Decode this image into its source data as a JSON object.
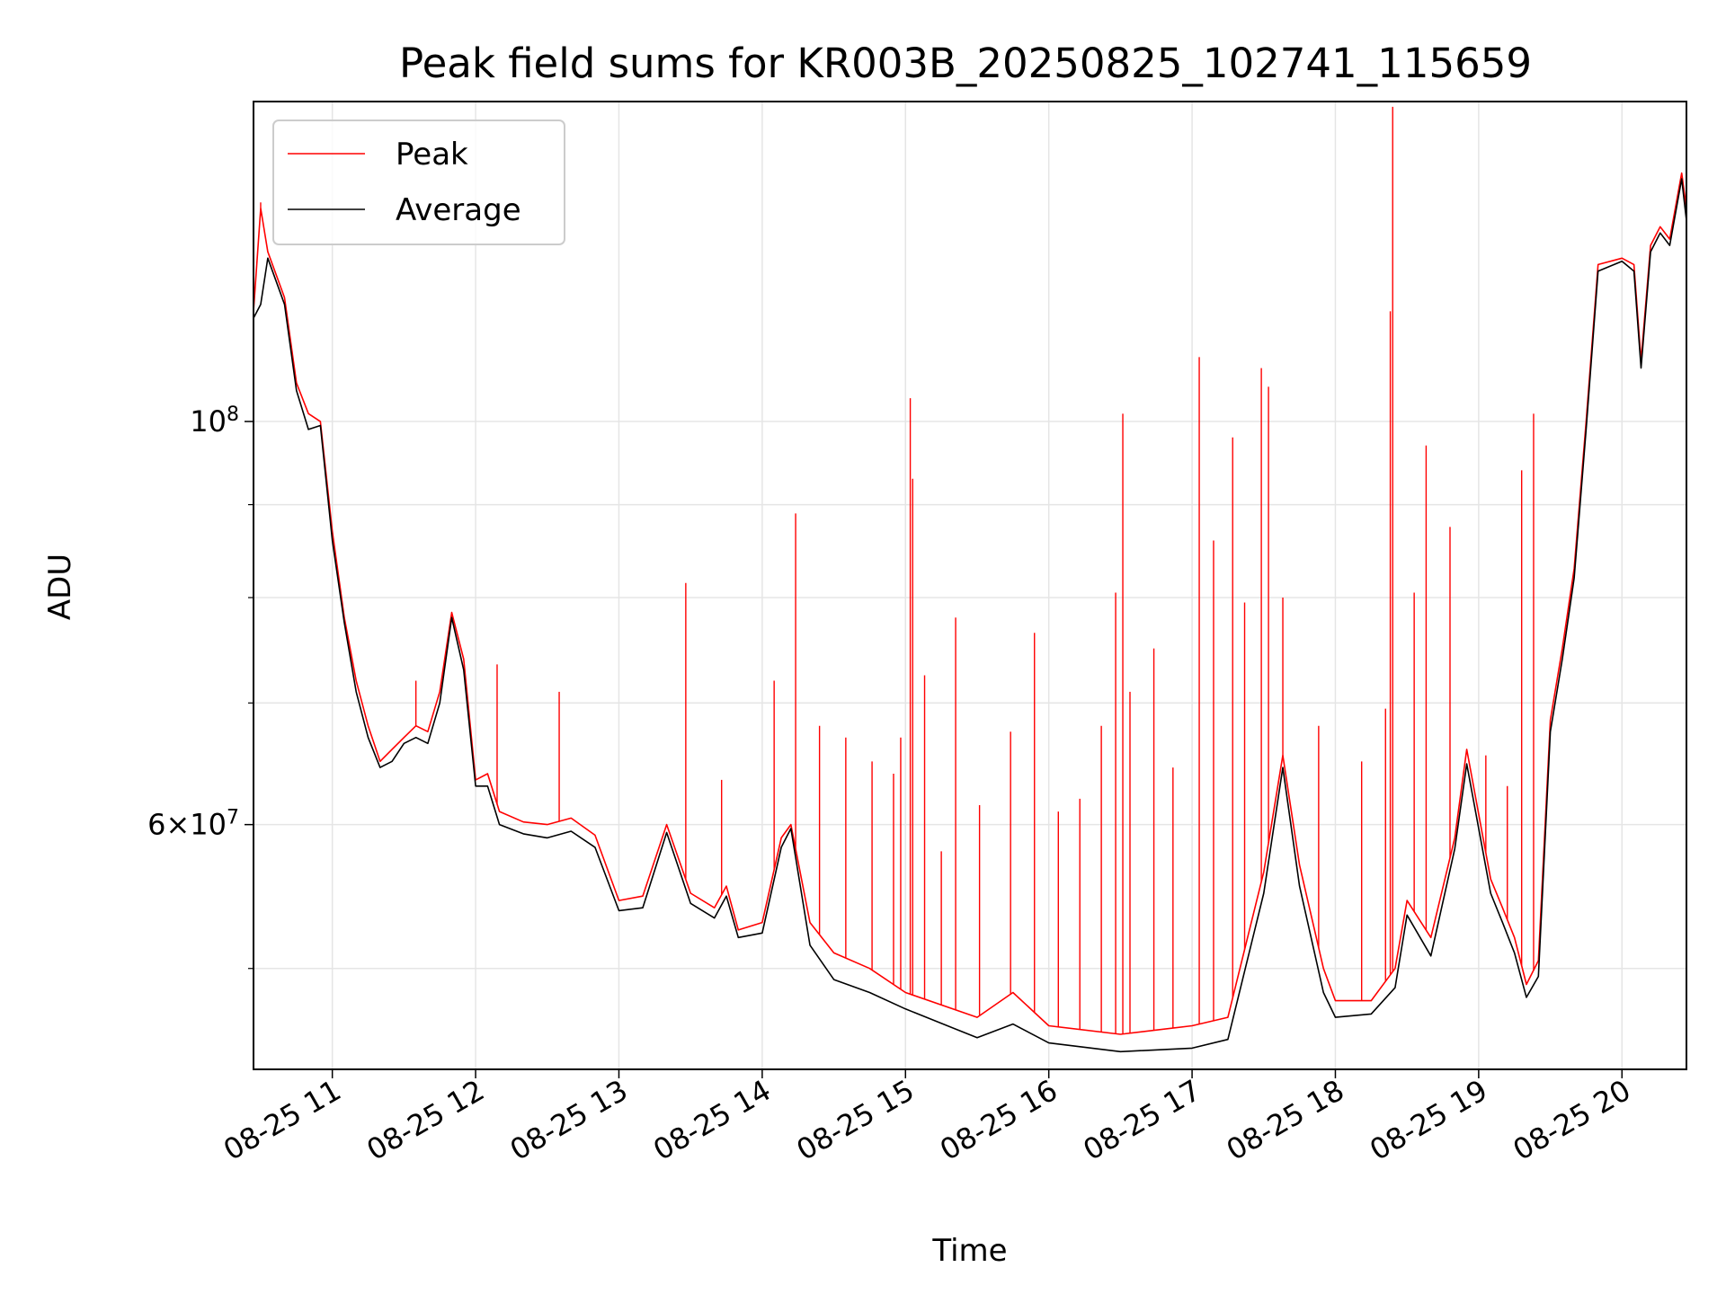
{
  "chart_data": {
    "type": "line",
    "title": "Peak field sums for KR003B_20250825_102741_115659",
    "xlabel": "Time",
    "ylabel": "ADU",
    "yscale": "log",
    "ylim": [
      44000000,
      150000000
    ],
    "xlim": [
      "2025-08-25 10:27",
      "2025-08-25 20:27"
    ],
    "grid": true,
    "legend_position": "upper left",
    "x_ticks": [
      "08-25 11",
      "08-25 12",
      "08-25 13",
      "08-25 14",
      "08-25 15",
      "08-25 16",
      "08-25 17",
      "08-25 18",
      "08-25 19",
      "08-25 20"
    ],
    "y_tick_labels": [
      {
        "value": 100000000,
        "base": "10",
        "exp": "8"
      },
      {
        "value": 60000000,
        "mantissa": "6",
        "base": "10",
        "exp": "7"
      }
    ],
    "y_minor_ticks": [
      50000000,
      70000000,
      80000000,
      90000000
    ],
    "series": [
      {
        "name": "Peak",
        "color": "#ff0000",
        "points": [
          [
            "2025-08-25 10:27",
            115000000
          ],
          [
            "2025-08-25 10:30",
            131000000
          ],
          [
            "2025-08-25 10:33",
            124000000
          ],
          [
            "2025-08-25 10:40",
            117000000
          ],
          [
            "2025-08-25 10:45",
            105000000
          ],
          [
            "2025-08-25 10:50",
            101000000
          ],
          [
            "2025-08-25 10:55",
            100000000
          ],
          [
            "2025-08-25 11:00",
            87000000
          ],
          [
            "2025-08-25 11:05",
            78000000
          ],
          [
            "2025-08-25 11:10",
            72000000
          ],
          [
            "2025-08-25 11:15",
            68000000
          ],
          [
            "2025-08-25 11:20",
            65000000
          ],
          [
            "2025-08-25 11:25",
            66000000
          ],
          [
            "2025-08-25 11:30",
            67000000
          ],
          [
            "2025-08-25 11:35",
            68000000
          ],
          [
            "2025-08-25 11:40",
            67500000
          ],
          [
            "2025-08-25 11:45",
            71000000
          ],
          [
            "2025-08-25 11:50",
            78500000
          ],
          [
            "2025-08-25 11:55",
            74000000
          ],
          [
            "2025-08-25 12:00",
            63500000
          ],
          [
            "2025-08-25 12:05",
            64000000
          ],
          [
            "2025-08-25 12:10",
            61000000
          ],
          [
            "2025-08-25 12:20",
            60200000
          ],
          [
            "2025-08-25 12:30",
            60000000
          ],
          [
            "2025-08-25 12:40",
            60500000
          ],
          [
            "2025-08-25 12:50",
            59200000
          ],
          [
            "2025-08-25 13:00",
            54500000
          ],
          [
            "2025-08-25 13:10",
            54800000
          ],
          [
            "2025-08-25 13:20",
            60000000
          ],
          [
            "2025-08-25 13:30",
            55000000
          ],
          [
            "2025-08-25 13:40",
            54000000
          ],
          [
            "2025-08-25 13:45",
            55500000
          ],
          [
            "2025-08-25 13:50",
            52500000
          ],
          [
            "2025-08-25 14:00",
            53000000
          ],
          [
            "2025-08-25 14:08",
            59000000
          ],
          [
            "2025-08-25 14:12",
            60000000
          ],
          [
            "2025-08-25 14:20",
            53000000
          ],
          [
            "2025-08-25 14:30",
            51000000
          ],
          [
            "2025-08-25 14:45",
            50000000
          ],
          [
            "2025-08-25 15:00",
            48500000
          ],
          [
            "2025-08-25 15:30",
            47000000
          ],
          [
            "2025-08-25 15:45",
            48500000
          ],
          [
            "2025-08-25 16:00",
            46500000
          ],
          [
            "2025-08-25 16:30",
            46000000
          ],
          [
            "2025-08-25 17:00",
            46500000
          ],
          [
            "2025-08-25 17:15",
            47000000
          ],
          [
            "2025-08-25 17:30",
            56500000
          ],
          [
            "2025-08-25 17:38",
            65500000
          ],
          [
            "2025-08-25 17:45",
            57000000
          ],
          [
            "2025-08-25 17:55",
            50000000
          ],
          [
            "2025-08-25 18:00",
            48000000
          ],
          [
            "2025-08-25 18:15",
            48000000
          ],
          [
            "2025-08-25 18:25",
            50000000
          ],
          [
            "2025-08-25 18:30",
            54500000
          ],
          [
            "2025-08-25 18:40",
            52000000
          ],
          [
            "2025-08-25 18:50",
            59000000
          ],
          [
            "2025-08-25 18:55",
            66000000
          ],
          [
            "2025-08-25 19:05",
            56000000
          ],
          [
            "2025-08-25 19:10",
            54000000
          ],
          [
            "2025-08-25 19:15",
            52000000
          ],
          [
            "2025-08-25 19:20",
            49000000
          ],
          [
            "2025-08-25 19:25",
            50500000
          ],
          [
            "2025-08-25 19:30",
            68500000
          ],
          [
            "2025-08-25 19:35",
            75000000
          ],
          [
            "2025-08-25 19:40",
            83000000
          ],
          [
            "2025-08-25 19:45",
            100000000
          ],
          [
            "2025-08-25 19:50",
            122000000
          ],
          [
            "2025-08-25 20:00",
            123000000
          ],
          [
            "2025-08-25 20:05",
            122000000
          ],
          [
            "2025-08-25 20:08",
            108000000
          ],
          [
            "2025-08-25 20:12",
            125000000
          ],
          [
            "2025-08-25 20:16",
            128000000
          ],
          [
            "2025-08-25 20:20",
            126000000
          ],
          [
            "2025-08-25 20:25",
            137000000
          ],
          [
            "2025-08-25 20:27",
            131000000
          ]
        ],
        "spikes": [
          [
            "2025-08-25 10:30",
            132000000
          ],
          [
            "2025-08-25 11:35",
            72000000
          ],
          [
            "2025-08-25 12:09",
            73500000
          ],
          [
            "2025-08-25 12:35",
            71000000
          ],
          [
            "2025-08-25 13:28",
            81500000
          ],
          [
            "2025-08-25 13:43",
            63500000
          ],
          [
            "2025-08-25 14:05",
            72000000
          ],
          [
            "2025-08-25 14:14",
            89000000
          ],
          [
            "2025-08-25 14:24",
            68000000
          ],
          [
            "2025-08-25 14:35",
            67000000
          ],
          [
            "2025-08-25 14:46",
            65000000
          ],
          [
            "2025-08-25 14:55",
            64000000
          ],
          [
            "2025-08-25 14:58",
            67000000
          ],
          [
            "2025-08-25 15:02",
            103000000
          ],
          [
            "2025-08-25 15:03",
            93000000
          ],
          [
            "2025-08-25 15:08",
            72500000
          ],
          [
            "2025-08-25 15:15",
            58000000
          ],
          [
            "2025-08-25 15:21",
            78000000
          ],
          [
            "2025-08-25 15:31",
            61500000
          ],
          [
            "2025-08-25 15:44",
            67500000
          ],
          [
            "2025-08-25 15:54",
            76500000
          ],
          [
            "2025-08-25 16:04",
            61000000
          ],
          [
            "2025-08-25 16:13",
            62000000
          ],
          [
            "2025-08-25 16:22",
            68000000
          ],
          [
            "2025-08-25 16:28",
            80500000
          ],
          [
            "2025-08-25 16:31",
            101000000
          ],
          [
            "2025-08-25 16:34",
            71000000
          ],
          [
            "2025-08-25 16:44",
            75000000
          ],
          [
            "2025-08-25 16:52",
            64500000
          ],
          [
            "2025-08-25 17:03",
            108500000
          ],
          [
            "2025-08-25 17:09",
            86000000
          ],
          [
            "2025-08-25 17:17",
            98000000
          ],
          [
            "2025-08-25 17:22",
            79500000
          ],
          [
            "2025-08-25 17:29",
            107000000
          ],
          [
            "2025-08-25 17:32",
            104500000
          ],
          [
            "2025-08-25 17:38",
            80000000
          ],
          [
            "2025-08-25 17:53",
            68000000
          ],
          [
            "2025-08-25 18:11",
            65000000
          ],
          [
            "2025-08-25 18:21",
            69500000
          ],
          [
            "2025-08-25 18:23",
            115000000
          ],
          [
            "2025-08-25 18:24",
            149000000
          ],
          [
            "2025-08-25 18:33",
            80500000
          ],
          [
            "2025-08-25 18:38",
            97000000
          ],
          [
            "2025-08-25 18:48",
            87500000
          ],
          [
            "2025-08-25 19:03",
            65500000
          ],
          [
            "2025-08-25 19:12",
            63000000
          ],
          [
            "2025-08-25 19:18",
            94000000
          ],
          [
            "2025-08-25 19:23",
            101000000
          ]
        ]
      },
      {
        "name": "Average",
        "color": "#000000",
        "points": [
          [
            "2025-08-25 10:27",
            114000000
          ],
          [
            "2025-08-25 10:30",
            116000000
          ],
          [
            "2025-08-25 10:33",
            123000000
          ],
          [
            "2025-08-25 10:40",
            116000000
          ],
          [
            "2025-08-25 10:45",
            104000000
          ],
          [
            "2025-08-25 10:50",
            99000000
          ],
          [
            "2025-08-25 10:55",
            99500000
          ],
          [
            "2025-08-25 11:00",
            86000000
          ],
          [
            "2025-08-25 11:05",
            77500000
          ],
          [
            "2025-08-25 11:10",
            71000000
          ],
          [
            "2025-08-25 11:15",
            67000000
          ],
          [
            "2025-08-25 11:20",
            64500000
          ],
          [
            "2025-08-25 11:25",
            65000000
          ],
          [
            "2025-08-25 11:30",
            66500000
          ],
          [
            "2025-08-25 11:35",
            67000000
          ],
          [
            "2025-08-25 11:40",
            66500000
          ],
          [
            "2025-08-25 11:45",
            70000000
          ],
          [
            "2025-08-25 11:50",
            78000000
          ],
          [
            "2025-08-25 11:55",
            73000000
          ],
          [
            "2025-08-25 12:00",
            63000000
          ],
          [
            "2025-08-25 12:05",
            63000000
          ],
          [
            "2025-08-25 12:10",
            60000000
          ],
          [
            "2025-08-25 12:20",
            59300000
          ],
          [
            "2025-08-25 12:30",
            59000000
          ],
          [
            "2025-08-25 12:40",
            59500000
          ],
          [
            "2025-08-25 12:50",
            58300000
          ],
          [
            "2025-08-25 13:00",
            53800000
          ],
          [
            "2025-08-25 13:10",
            54000000
          ],
          [
            "2025-08-25 13:20",
            59400000
          ],
          [
            "2025-08-25 13:30",
            54300000
          ],
          [
            "2025-08-25 13:40",
            53300000
          ],
          [
            "2025-08-25 13:45",
            54800000
          ],
          [
            "2025-08-25 13:50",
            52000000
          ],
          [
            "2025-08-25 14:00",
            52300000
          ],
          [
            "2025-08-25 14:08",
            58300000
          ],
          [
            "2025-08-25 14:12",
            59700000
          ],
          [
            "2025-08-25 14:20",
            51500000
          ],
          [
            "2025-08-25 14:30",
            49300000
          ],
          [
            "2025-08-25 14:45",
            48500000
          ],
          [
            "2025-08-25 15:00",
            47500000
          ],
          [
            "2025-08-25 15:30",
            45800000
          ],
          [
            "2025-08-25 15:45",
            46600000
          ],
          [
            "2025-08-25 16:00",
            45500000
          ],
          [
            "2025-08-25 16:30",
            45000000
          ],
          [
            "2025-08-25 17:00",
            45200000
          ],
          [
            "2025-08-25 17:15",
            45700000
          ],
          [
            "2025-08-25 17:30",
            55000000
          ],
          [
            "2025-08-25 17:38",
            64500000
          ],
          [
            "2025-08-25 17:45",
            55500000
          ],
          [
            "2025-08-25 17:55",
            48500000
          ],
          [
            "2025-08-25 18:00",
            47000000
          ],
          [
            "2025-08-25 18:15",
            47200000
          ],
          [
            "2025-08-25 18:25",
            48800000
          ],
          [
            "2025-08-25 18:30",
            53500000
          ],
          [
            "2025-08-25 18:40",
            50800000
          ],
          [
            "2025-08-25 18:50",
            58200000
          ],
          [
            "2025-08-25 18:55",
            64800000
          ],
          [
            "2025-08-25 19:05",
            55000000
          ],
          [
            "2025-08-25 19:10",
            53000000
          ],
          [
            "2025-08-25 19:15",
            51000000
          ],
          [
            "2025-08-25 19:20",
            48200000
          ],
          [
            "2025-08-25 19:25",
            49500000
          ],
          [
            "2025-08-25 19:30",
            67500000
          ],
          [
            "2025-08-25 19:35",
            74000000
          ],
          [
            "2025-08-25 19:40",
            82000000
          ],
          [
            "2025-08-25 19:45",
            99000000
          ],
          [
            "2025-08-25 19:50",
            121000000
          ],
          [
            "2025-08-25 20:00",
            122500000
          ],
          [
            "2025-08-25 20:05",
            121000000
          ],
          [
            "2025-08-25 20:08",
            107000000
          ],
          [
            "2025-08-25 20:12",
            124000000
          ],
          [
            "2025-08-25 20:16",
            127000000
          ],
          [
            "2025-08-25 20:20",
            125000000
          ],
          [
            "2025-08-25 20:25",
            136000000
          ],
          [
            "2025-08-25 20:27",
            129000000
          ]
        ]
      }
    ]
  }
}
